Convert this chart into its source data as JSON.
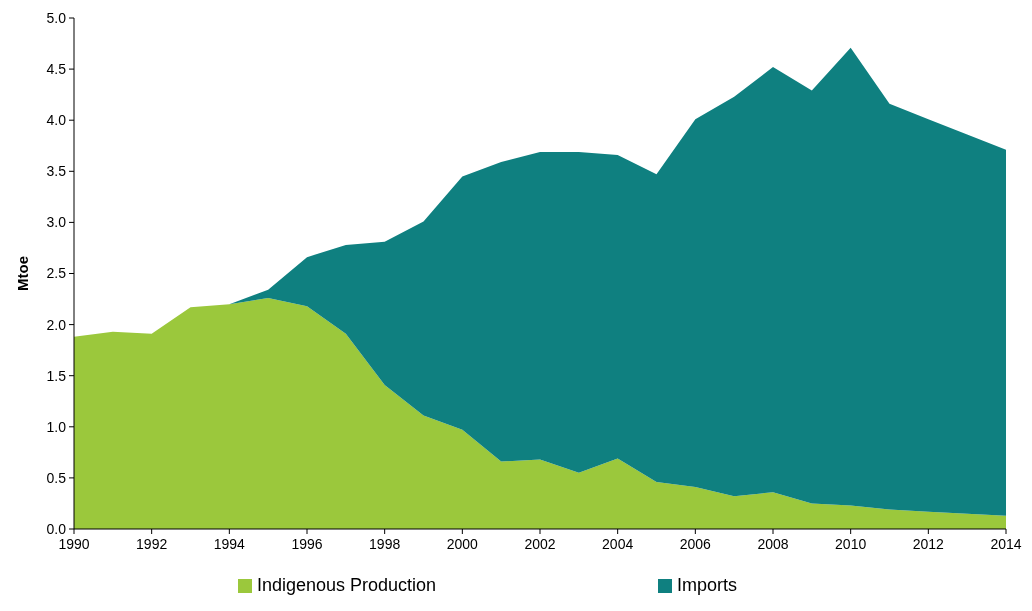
{
  "chart_data": {
    "type": "area",
    "stacked": true,
    "ylabel": "Mtoe",
    "x": [
      1990,
      1991,
      1992,
      1993,
      1994,
      1995,
      1996,
      1997,
      1998,
      1999,
      2000,
      2001,
      2002,
      2003,
      2004,
      2005,
      2006,
      2007,
      2008,
      2009,
      2010,
      2011,
      2012,
      2013,
      2014
    ],
    "series": [
      {
        "name": "Indigenous Production",
        "color": "#9bc83c",
        "values": [
          1.88,
          1.93,
          1.91,
          2.17,
          2.2,
          2.26,
          2.18,
          1.91,
          1.41,
          1.11,
          0.97,
          0.66,
          0.68,
          0.55,
          0.69,
          0.46,
          0.41,
          0.32,
          0.36,
          0.25,
          0.23,
          0.19,
          0.17,
          0.15,
          0.13
        ]
      },
      {
        "name": "Imports",
        "color": "#0f8080",
        "values": [
          0,
          0,
          0,
          0,
          0,
          0.08,
          0.48,
          0.87,
          1.4,
          1.9,
          2.48,
          2.93,
          3.01,
          3.14,
          2.97,
          3.01,
          3.6,
          3.91,
          4.16,
          4.04,
          4.48,
          3.97,
          3.84,
          3.71,
          3.58
        ]
      }
    ],
    "xlim": [
      1990,
      2014
    ],
    "xticks": [
      1990,
      1992,
      1994,
      1996,
      1998,
      2000,
      2002,
      2004,
      2006,
      2008,
      2010,
      2012,
      2014
    ],
    "ylim": [
      0,
      5
    ],
    "yticks": [
      {
        "value": 0,
        "label": "0.0"
      },
      {
        "value": 0.5,
        "label": "0.5"
      },
      {
        "value": 1,
        "label": "1.0"
      },
      {
        "value": 1.5,
        "label": "1.5"
      },
      {
        "value": 2,
        "label": "2.0"
      },
      {
        "value": 2.5,
        "label": "2.5"
      },
      {
        "value": 3,
        "label": "3.0"
      },
      {
        "value": 3.5,
        "label": "3.5"
      },
      {
        "value": 4,
        "label": "4.0"
      },
      {
        "value": 4.5,
        "label": "4.5"
      },
      {
        "value": 5,
        "label": "5.0"
      }
    ],
    "legend": "bottom"
  }
}
